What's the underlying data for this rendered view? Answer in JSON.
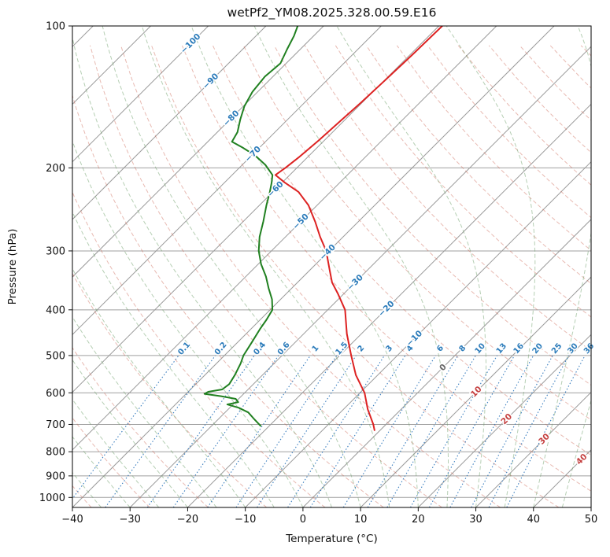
{
  "title": "wetPf2_YM08.2025.328.00.59.E16",
  "axes": {
    "x_label": "Temperature (°C)",
    "y_label": "Pressure (hPa)",
    "x_ticks": [
      -40,
      -30,
      -20,
      -10,
      0,
      10,
      20,
      30,
      40,
      50
    ],
    "y_ticks": [
      100,
      200,
      300,
      400,
      500,
      600,
      700,
      800,
      900,
      1000
    ]
  },
  "chart_data": {
    "type": "line",
    "subtype": "skew-t-log-p",
    "title": "wetPf2_YM08.2025.328.00.59.E16",
    "xlabel": "Temperature (°C)",
    "ylabel": "Pressure (hPa)",
    "x_range": [
      -40,
      50
    ],
    "pressure_range": [
      100,
      1050
    ],
    "skew_deg": 45,
    "grid_on": true,
    "units": {
      "pressure": "hPa",
      "temperature": "°C",
      "mixing_ratio": "g/kg"
    },
    "grid": {
      "isotherms": {
        "min": -150,
        "max": 50,
        "step": 10,
        "color": "#9a9a9a"
      },
      "pressure_lines": {
        "color": "#9f9f9f"
      },
      "dry_adiabats": {
        "theta_min": -40,
        "theta_max": 280,
        "step": 10,
        "color": "rgba(205,102,85,0.45)"
      },
      "moist_adiabats": {
        "t0_min": -55,
        "t0_max": 45,
        "step": 5,
        "color": "rgba(110,160,105,0.50)"
      },
      "mixing_ratio": {
        "values": [
          0.1,
          0.2,
          0.4,
          0.6,
          1,
          1.5,
          2,
          3,
          4,
          6,
          8,
          10,
          13,
          16,
          20,
          25,
          30,
          36
        ],
        "color": "#3a7ebf",
        "label_color": "#2b7bba",
        "label_pressure": 483,
        "top_pressure": 500
      }
    },
    "isotherm_labels": [
      {
        "t": -100,
        "p": 109,
        "color": "#2b7bba"
      },
      {
        "t": -90,
        "p": 131,
        "color": "#2b7bba"
      },
      {
        "t": -80,
        "p": 157,
        "color": "#2b7bba"
      },
      {
        "t": -70,
        "p": 187,
        "color": "#2b7bba"
      },
      {
        "t": -60,
        "p": 222,
        "color": "#2b7bba"
      },
      {
        "t": -50,
        "p": 260,
        "color": "#2b7bba"
      },
      {
        "t": -40,
        "p": 302,
        "color": "#2b7bba"
      },
      {
        "t": -30,
        "p": 350,
        "color": "#2b7bba"
      },
      {
        "t": -20,
        "p": 398,
        "color": "#2b7bba"
      },
      {
        "t": -10,
        "p": 460,
        "color": "#2b7bba"
      },
      {
        "t": 0,
        "p": 530,
        "color": "#666666"
      },
      {
        "t": 10,
        "p": 597,
        "color": "#c54040"
      },
      {
        "t": 20,
        "p": 682,
        "color": "#c54040"
      },
      {
        "t": 30,
        "p": 752,
        "color": "#c54040"
      },
      {
        "t": 40,
        "p": 830,
        "color": "#c54040"
      }
    ],
    "series": [
      {
        "name": "temperature",
        "color": "#dd2222",
        "width": 2,
        "points": [
          [
            720,
            -1.0
          ],
          [
            700,
            -2.2
          ],
          [
            650,
            -5.8
          ],
          [
            600,
            -9.2
          ],
          [
            550,
            -13.8
          ],
          [
            500,
            -18.0
          ],
          [
            450,
            -22.5
          ],
          [
            400,
            -27.0
          ],
          [
            370,
            -31.0
          ],
          [
            350,
            -34.0
          ],
          [
            330,
            -36.5
          ],
          [
            300,
            -40.5
          ],
          [
            280,
            -44.0
          ],
          [
            260,
            -47.5
          ],
          [
            240,
            -51.5
          ],
          [
            225,
            -55.5
          ],
          [
            215,
            -59.5
          ],
          [
            207,
            -62.5
          ],
          [
            200,
            -62.0
          ],
          [
            190,
            -61.5
          ],
          [
            175,
            -61.0
          ],
          [
            160,
            -60.6
          ],
          [
            145,
            -60.2
          ],
          [
            130,
            -59.9
          ],
          [
            115,
            -59.6
          ],
          [
            100,
            -59.4
          ]
        ]
      },
      {
        "name": "dewpoint",
        "color": "#208020",
        "width": 2,
        "points": [
          [
            705,
            -21.5
          ],
          [
            680,
            -24.0
          ],
          [
            660,
            -26.0
          ],
          [
            645,
            -28.5
          ],
          [
            635,
            -31.0
          ],
          [
            628,
            -29.5
          ],
          [
            618,
            -30.5
          ],
          [
            610,
            -33.5
          ],
          [
            603,
            -36.8
          ],
          [
            597,
            -36.5
          ],
          [
            590,
            -34.5
          ],
          [
            575,
            -34.2
          ],
          [
            550,
            -34.8
          ],
          [
            520,
            -35.8
          ],
          [
            500,
            -36.7
          ],
          [
            470,
            -37.5
          ],
          [
            440,
            -38.4
          ],
          [
            420,
            -38.9
          ],
          [
            400,
            -39.6
          ],
          [
            380,
            -41.5
          ],
          [
            360,
            -44.0
          ],
          [
            340,
            -46.5
          ],
          [
            320,
            -49.5
          ],
          [
            300,
            -52.2
          ],
          [
            280,
            -54.5
          ],
          [
            260,
            -56.5
          ],
          [
            240,
            -58.8
          ],
          [
            225,
            -60.5
          ],
          [
            215,
            -61.8
          ],
          [
            207,
            -63.0
          ],
          [
            197,
            -66.0
          ],
          [
            188,
            -69.5
          ],
          [
            181,
            -73.0
          ],
          [
            176,
            -75.8
          ],
          [
            168,
            -76.5
          ],
          [
            158,
            -78.2
          ],
          [
            148,
            -79.8
          ],
          [
            138,
            -80.9
          ],
          [
            128,
            -81.4
          ],
          [
            120,
            -81.0
          ],
          [
            112,
            -82.3
          ],
          [
            105,
            -83.4
          ],
          [
            100,
            -84.5
          ]
        ]
      }
    ]
  }
}
